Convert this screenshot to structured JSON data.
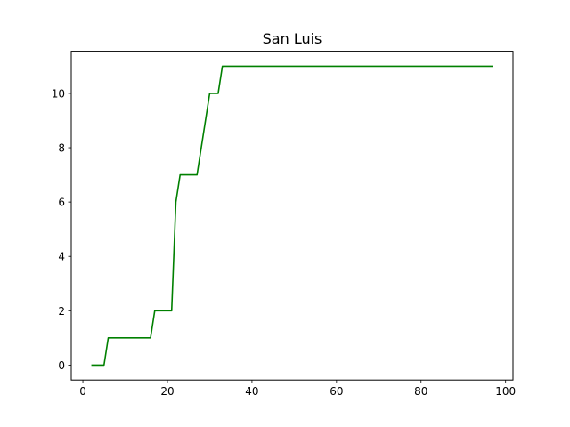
{
  "chart_data": {
    "type": "line",
    "title": "San Luis",
    "xlabel": "",
    "ylabel": "",
    "xlim": [
      -2.75,
      101.75
    ],
    "ylim": [
      -0.55,
      11.55
    ],
    "xticks": [
      0,
      20,
      40,
      60,
      80,
      100
    ],
    "yticks": [
      0,
      2,
      4,
      6,
      8,
      10
    ],
    "grid": false,
    "legend": "none",
    "series": [
      {
        "color": "#008000",
        "x": [
          2,
          3,
          4,
          5,
          6,
          7,
          8,
          9,
          10,
          11,
          12,
          13,
          14,
          15,
          16,
          17,
          18,
          19,
          20,
          21,
          22,
          23,
          24,
          25,
          26,
          27,
          28,
          29,
          30,
          31,
          32,
          33,
          97
        ],
        "y": [
          0,
          0,
          0,
          0,
          1,
          1,
          1,
          1,
          1,
          1,
          1,
          1,
          1,
          1,
          1,
          2,
          2,
          2,
          2,
          2,
          6,
          7,
          7,
          7,
          7,
          7,
          8,
          9,
          10,
          10,
          10,
          11,
          11
        ]
      }
    ]
  }
}
